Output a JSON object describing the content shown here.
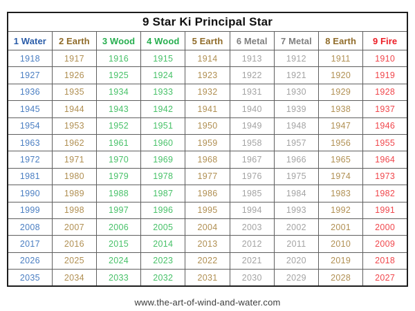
{
  "page": {
    "background": "#ffffff"
  },
  "table": {
    "title": "9 Star Ki Principal Star",
    "title_color": "#111111",
    "outer_border_color": "#1c1c1c",
    "grid_color": "#5d5d5d",
    "columns": [
      {
        "label": "1 Water",
        "header_color": "#2a5ca8",
        "year_color": "#4a7ec2"
      },
      {
        "label": "2 Earth",
        "header_color": "#8f6b29",
        "year_color": "#b08f52"
      },
      {
        "label": "3 Wood",
        "header_color": "#27ae4f",
        "year_color": "#47c168"
      },
      {
        "label": "4 Wood",
        "header_color": "#27ae4f",
        "year_color": "#47c168"
      },
      {
        "label": "5 Earth",
        "header_color": "#8f6b29",
        "year_color": "#b08f52"
      },
      {
        "label": "6 Metal",
        "header_color": "#7f7f7f",
        "year_color": "#a3a3a3"
      },
      {
        "label": "7 Metal",
        "header_color": "#7f7f7f",
        "year_color": "#a3a3a3"
      },
      {
        "label": "8 Earth",
        "header_color": "#8f6b29",
        "year_color": "#b08f52"
      },
      {
        "label": "9 Fire",
        "header_color": "#ec1c24",
        "year_color": "#f0464b"
      }
    ],
    "rows": [
      [
        "1918",
        "1917",
        "1916",
        "1915",
        "1914",
        "1913",
        "1912",
        "1911",
        "1910"
      ],
      [
        "1927",
        "1926",
        "1925",
        "1924",
        "1923",
        "1922",
        "1921",
        "1920",
        "1919"
      ],
      [
        "1936",
        "1935",
        "1934",
        "1933",
        "1932",
        "1931",
        "1930",
        "1929",
        "1928"
      ],
      [
        "1945",
        "1944",
        "1943",
        "1942",
        "1941",
        "1940",
        "1939",
        "1938",
        "1937"
      ],
      [
        "1954",
        "1953",
        "1952",
        "1951",
        "1950",
        "1949",
        "1948",
        "1947",
        "1946"
      ],
      [
        "1963",
        "1962",
        "1961",
        "1960",
        "1959",
        "1958",
        "1957",
        "1956",
        "1955"
      ],
      [
        "1972",
        "1971",
        "1970",
        "1969",
        "1968",
        "1967",
        "1966",
        "1965",
        "1964"
      ],
      [
        "1981",
        "1980",
        "1979",
        "1978",
        "1977",
        "1976",
        "1975",
        "1974",
        "1973"
      ],
      [
        "1990",
        "1989",
        "1988",
        "1987",
        "1986",
        "1985",
        "1984",
        "1983",
        "1982"
      ],
      [
        "1999",
        "1998",
        "1997",
        "1996",
        "1995",
        "1994",
        "1993",
        "1992",
        "1991"
      ],
      [
        "2008",
        "2007",
        "2006",
        "2005",
        "2004",
        "2003",
        "2002",
        "2001",
        "2000"
      ],
      [
        "2017",
        "2016",
        "2015",
        "2014",
        "2013",
        "2012",
        "2011",
        "2010",
        "2009"
      ],
      [
        "2026",
        "2025",
        "2024",
        "2023",
        "2022",
        "2021",
        "2020",
        "2019",
        "2018"
      ],
      [
        "2035",
        "2034",
        "2033",
        "2032",
        "2031",
        "2030",
        "2029",
        "2028",
        "2027"
      ]
    ]
  },
  "footer": {
    "url": "www.the-art-of-wind-and-water.com",
    "color": "#3c3c3c"
  }
}
